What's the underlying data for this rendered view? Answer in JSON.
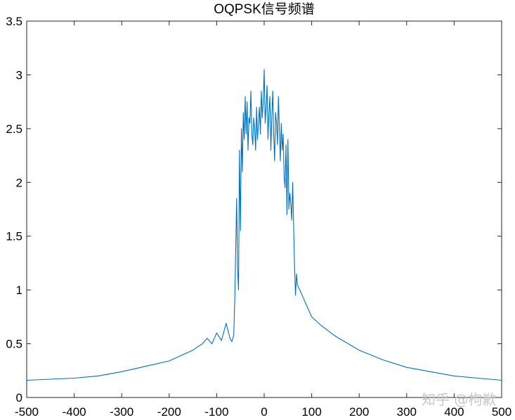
{
  "chart_data": {
    "type": "line",
    "title": "OQPSK信号频谱",
    "xlabel": "",
    "ylabel": "",
    "xlim": [
      -500,
      500
    ],
    "ylim": [
      0,
      3.5
    ],
    "xticks": [
      "-500",
      "-400",
      "-300",
      "-200",
      "-100",
      "0",
      "100",
      "200",
      "300",
      "400",
      "500"
    ],
    "yticks": [
      "0",
      "0.5",
      "1",
      "1.5",
      "2",
      "2.5",
      "3",
      "3.5"
    ],
    "grid": false,
    "line_color": "#0072BD",
    "series": [
      {
        "x": [
          -500,
          -450,
          -400,
          -350,
          -300,
          -250,
          -200,
          -150,
          -130,
          -120,
          -110,
          -100,
          -90,
          -80,
          -72,
          -68,
          -64,
          -62,
          -60,
          -58,
          -56,
          -54,
          -52,
          -50,
          -48,
          -46,
          -44,
          -42,
          -40,
          -38,
          -36,
          -34,
          -32,
          -30,
          -28,
          -26,
          -24,
          -22,
          -20,
          -18,
          -16,
          -14,
          -12,
          -10,
          -8,
          -6,
          -4,
          -2,
          0,
          2,
          4,
          6,
          8,
          10,
          12,
          14,
          16,
          18,
          20,
          22,
          24,
          26,
          28,
          30,
          32,
          34,
          36,
          38,
          40,
          42,
          44,
          46,
          48,
          50,
          52,
          54,
          56,
          58,
          60,
          62,
          64,
          66,
          68,
          70,
          75,
          80,
          90,
          100,
          120,
          150,
          200,
          250,
          300,
          350,
          400,
          450,
          500
        ],
        "y": [
          0.16,
          0.17,
          0.18,
          0.2,
          0.24,
          0.29,
          0.34,
          0.44,
          0.5,
          0.55,
          0.5,
          0.6,
          0.53,
          0.69,
          0.55,
          0.52,
          0.58,
          0.9,
          1.35,
          1.85,
          1.2,
          1.0,
          2.3,
          1.55,
          2.5,
          2.1,
          2.65,
          2.4,
          2.8,
          2.45,
          2.75,
          2.3,
          2.6,
          2.55,
          2.85,
          2.45,
          2.35,
          2.6,
          2.5,
          2.3,
          2.7,
          2.4,
          2.55,
          2.7,
          2.45,
          2.85,
          2.6,
          2.75,
          3.05,
          2.55,
          2.7,
          2.9,
          2.4,
          2.65,
          2.8,
          2.3,
          2.6,
          2.85,
          2.45,
          2.2,
          2.65,
          2.55,
          2.35,
          2.8,
          2.5,
          2.2,
          2.55,
          2.3,
          2.45,
          2.05,
          1.95,
          2.35,
          1.7,
          2.4,
          1.75,
          1.9,
          1.8,
          1.65,
          2.0,
          1.6,
          1.2,
          0.95,
          1.15,
          1.05,
          1.0,
          0.95,
          0.85,
          0.75,
          0.67,
          0.57,
          0.44,
          0.35,
          0.28,
          0.24,
          0.2,
          0.18,
          0.16
        ]
      }
    ]
  },
  "watermark": "知乎 @枸歉"
}
